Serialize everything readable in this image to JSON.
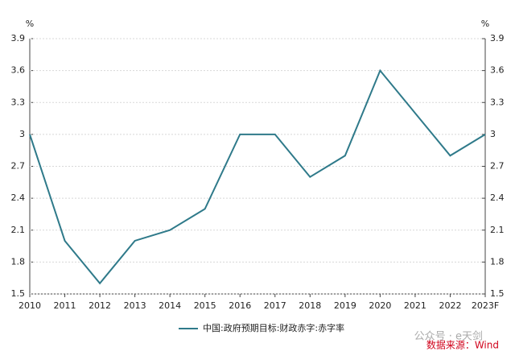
{
  "chart_data": {
    "type": "line",
    "categories": [
      "2010",
      "2011",
      "2012",
      "2013",
      "2014",
      "2015",
      "2016",
      "2017",
      "2018",
      "2019",
      "2020",
      "2021",
      "2022",
      "2023F"
    ],
    "series": [
      {
        "name": "中国:政府预期目标:财政赤字:赤字率",
        "color": "#2f7a8a",
        "values": [
          3.0,
          2.0,
          1.6,
          2.0,
          2.1,
          2.3,
          3.0,
          3.0,
          2.6,
          2.8,
          3.6,
          3.2,
          2.8,
          3.0
        ]
      }
    ],
    "ylim": [
      1.5,
      3.9
    ],
    "yticks": [
      1.5,
      1.8,
      2.1,
      2.4,
      2.7,
      3,
      3.3,
      3.6,
      3.9
    ],
    "y2lim": [
      1.5,
      3.9
    ],
    "y2ticks": [
      1.5,
      1.8,
      2.1,
      2.4,
      2.7,
      3,
      3.3,
      3.6,
      3.9
    ],
    "y_unit": "%",
    "y2_unit": "%",
    "grid": true,
    "legend": "bottom",
    "source": "数据来源：Wind",
    "watermark": "公众号 · e天剑"
  }
}
